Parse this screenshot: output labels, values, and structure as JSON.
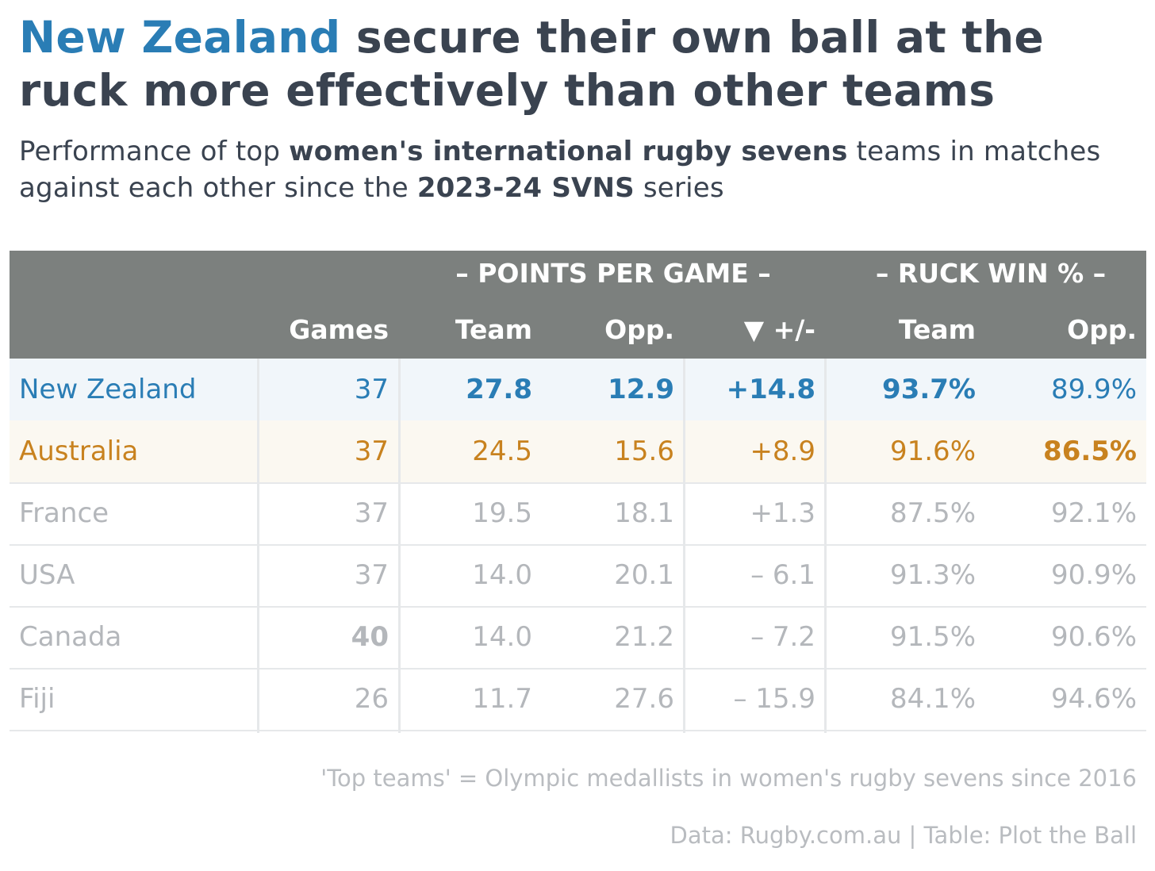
{
  "title": {
    "highlight": "New Zealand",
    "rest": " secure their own ball at the ruck more effectively than other teams"
  },
  "subtitle": {
    "part1": "Performance of top ",
    "bold1": "women's international rugby sevens",
    "part2": " teams in matches against each other since the ",
    "bold2": "2023-24 SVNS",
    "part3": " series"
  },
  "colors": {
    "new_zealand": "#2a7db5",
    "australia": "#c8821f",
    "other": "#b4b7bb",
    "header_bg": "#7c807e"
  },
  "chart_data": {
    "type": "table",
    "column_groups": [
      {
        "label": "– POINTS PER GAME –",
        "columns": [
          "ppg_team",
          "ppg_opp",
          "diff"
        ]
      },
      {
        "label": "– RUCK WIN % –",
        "columns": [
          "ruck_team",
          "ruck_opp"
        ]
      }
    ],
    "columns": [
      {
        "key": "games",
        "label": "Games"
      },
      {
        "key": "ppg_team",
        "label": "Team"
      },
      {
        "key": "ppg_opp",
        "label": "Opp."
      },
      {
        "key": "diff",
        "label": "▼ +/-"
      },
      {
        "key": "ruck_team",
        "label": "Team"
      },
      {
        "key": "ruck_opp",
        "label": "Opp."
      }
    ],
    "rows": [
      {
        "team": "New Zealand",
        "color_key": "new_zealand",
        "games": "37",
        "ppg_team": "27.8",
        "ppg_opp": "12.9",
        "diff": "+14.8",
        "ruck_team": "93.7%",
        "ruck_opp": "89.9%",
        "bold": [
          "ppg_team",
          "ppg_opp",
          "diff",
          "ruck_team"
        ]
      },
      {
        "team": "Australia",
        "color_key": "australia",
        "games": "37",
        "ppg_team": "24.5",
        "ppg_opp": "15.6",
        "diff": "+8.9",
        "ruck_team": "91.6%",
        "ruck_opp": "86.5%",
        "bold": [
          "ruck_opp"
        ]
      },
      {
        "team": "France",
        "color_key": "other",
        "games": "37",
        "ppg_team": "19.5",
        "ppg_opp": "18.1",
        "diff": "+1.3",
        "ruck_team": "87.5%",
        "ruck_opp": "92.1%",
        "bold": []
      },
      {
        "team": "USA",
        "color_key": "other",
        "games": "37",
        "ppg_team": "14.0",
        "ppg_opp": "20.1",
        "diff": "– 6.1",
        "ruck_team": "91.3%",
        "ruck_opp": "90.9%",
        "bold": []
      },
      {
        "team": "Canada",
        "color_key": "other",
        "games": "40",
        "ppg_team": "14.0",
        "ppg_opp": "21.2",
        "diff": "– 7.2",
        "ruck_team": "91.5%",
        "ruck_opp": "90.6%",
        "bold": [
          "games"
        ]
      },
      {
        "team": "Fiji",
        "color_key": "other",
        "games": "26",
        "ppg_team": "11.7",
        "ppg_opp": "27.6",
        "diff": "– 15.9",
        "ruck_team": "84.1%",
        "ruck_opp": "94.6%",
        "bold": []
      }
    ]
  },
  "footer": {
    "note": "'Top teams' = Olympic medallists in women's rugby sevens since 2016",
    "source": "Data: Rugby.com.au | Table: Plot the Ball"
  }
}
